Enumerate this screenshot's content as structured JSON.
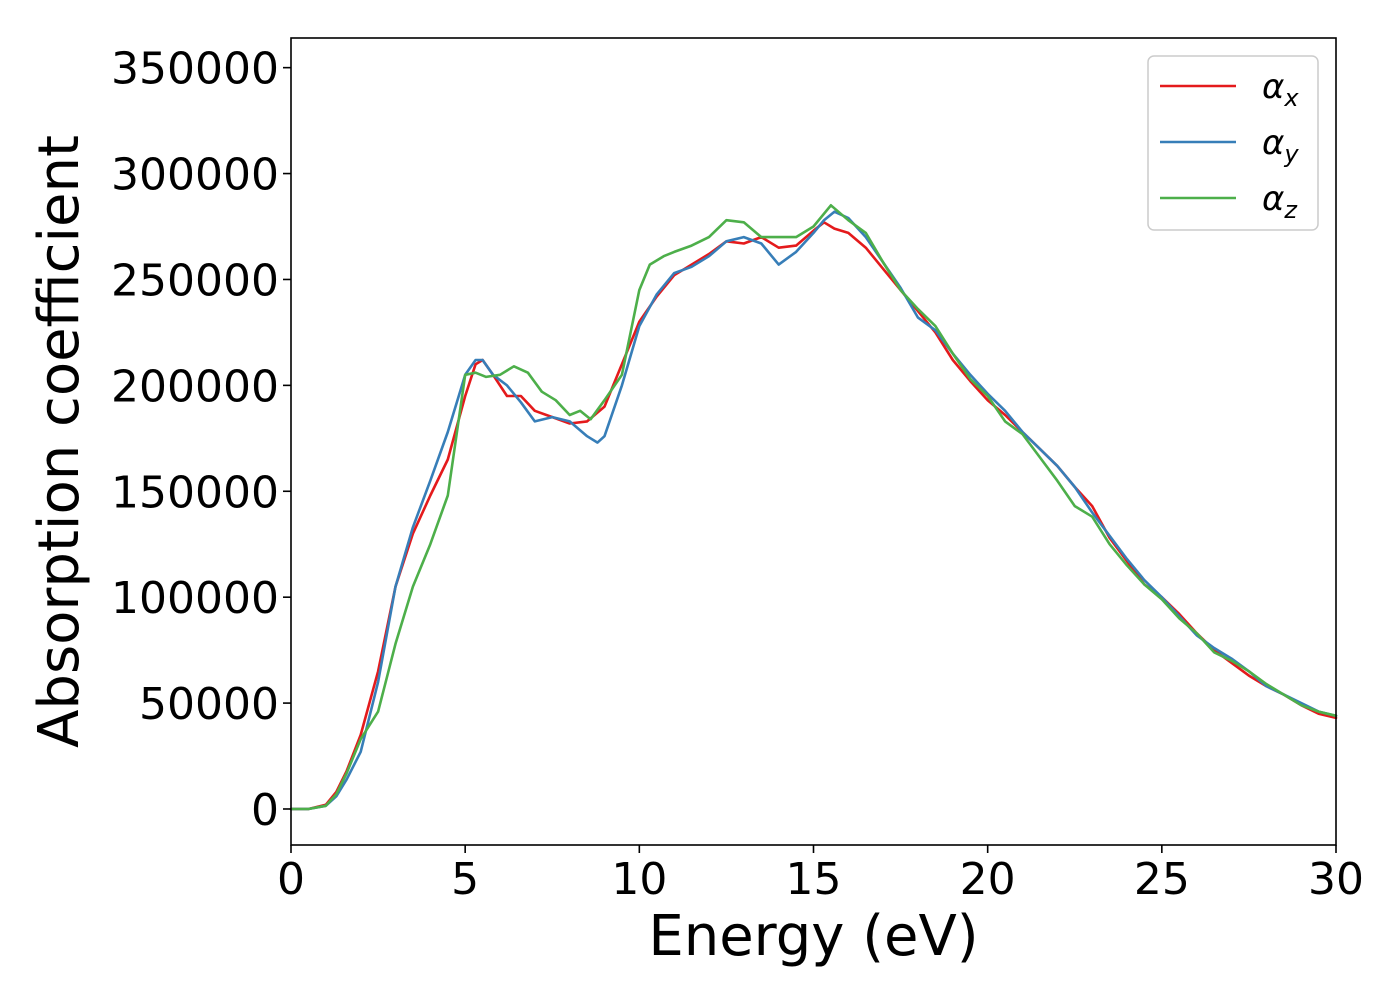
{
  "chart_data": {
    "type": "line",
    "title": "",
    "xlabel": "Energy (eV)",
    "ylabel": "Absorption coefficient",
    "xlim": [
      0,
      30
    ],
    "ylim": [
      -17000,
      364000
    ],
    "xticks": [
      0,
      5,
      10,
      15,
      20,
      25,
      30
    ],
    "xtick_labels": [
      "0",
      "5",
      "10",
      "15",
      "20",
      "25",
      "30"
    ],
    "yticks": [
      0,
      50000,
      100000,
      150000,
      200000,
      250000,
      300000,
      350000
    ],
    "ytick_labels": [
      "0",
      "50000",
      "100000",
      "150000",
      "200000",
      "250000",
      "300000",
      "350000"
    ],
    "grid": false,
    "legend_position": "top-right",
    "series": [
      {
        "name": "αx",
        "legend_symbol": "α",
        "legend_subscript": "x",
        "color": "#e41a1c",
        "points": [
          [
            0,
            0
          ],
          [
            0.5,
            0
          ],
          [
            1,
            2000
          ],
          [
            1.3,
            8000
          ],
          [
            1.6,
            18000
          ],
          [
            2,
            35000
          ],
          [
            2.5,
            65000
          ],
          [
            3,
            105000
          ],
          [
            3.5,
            130000
          ],
          [
            4,
            148000
          ],
          [
            4.5,
            165000
          ],
          [
            5,
            195000
          ],
          [
            5.3,
            210000
          ],
          [
            5.5,
            212000
          ],
          [
            5.8,
            205000
          ],
          [
            6.2,
            195000
          ],
          [
            6.6,
            195000
          ],
          [
            7,
            188000
          ],
          [
            7.5,
            185000
          ],
          [
            8,
            182000
          ],
          [
            8.5,
            183000
          ],
          [
            9,
            190000
          ],
          [
            9.5,
            210000
          ],
          [
            10,
            230000
          ],
          [
            10.5,
            242000
          ],
          [
            11,
            252000
          ],
          [
            11.5,
            257000
          ],
          [
            12,
            262000
          ],
          [
            12.5,
            268000
          ],
          [
            13,
            267000
          ],
          [
            13.5,
            270000
          ],
          [
            14,
            265000
          ],
          [
            14.5,
            266000
          ],
          [
            15,
            273000
          ],
          [
            15.3,
            277000
          ],
          [
            15.6,
            274000
          ],
          [
            16,
            272000
          ],
          [
            16.5,
            265000
          ],
          [
            17,
            255000
          ],
          [
            17.5,
            245000
          ],
          [
            18,
            235000
          ],
          [
            18.5,
            225000
          ],
          [
            19,
            212000
          ],
          [
            19.5,
            202000
          ],
          [
            20,
            193000
          ],
          [
            20.5,
            186000
          ],
          [
            21,
            178000
          ],
          [
            21.5,
            170000
          ],
          [
            22,
            162000
          ],
          [
            22.5,
            152000
          ],
          [
            23,
            143000
          ],
          [
            23.5,
            128000
          ],
          [
            24,
            117000
          ],
          [
            24.5,
            106000
          ],
          [
            25,
            100000
          ],
          [
            25.5,
            92000
          ],
          [
            26,
            83000
          ],
          [
            26.5,
            75000
          ],
          [
            27,
            69000
          ],
          [
            27.5,
            63000
          ],
          [
            28,
            58000
          ],
          [
            28.5,
            54000
          ],
          [
            29,
            49000
          ],
          [
            29.5,
            45000
          ],
          [
            30,
            43000
          ]
        ]
      },
      {
        "name": "αy",
        "legend_symbol": "α",
        "legend_subscript": "y",
        "color": "#377eb8",
        "points": [
          [
            0,
            0
          ],
          [
            0.5,
            0
          ],
          [
            1,
            1500
          ],
          [
            1.3,
            6000
          ],
          [
            1.6,
            14000
          ],
          [
            2,
            27000
          ],
          [
            2.5,
            60000
          ],
          [
            3,
            105000
          ],
          [
            3.5,
            133000
          ],
          [
            4,
            155000
          ],
          [
            4.5,
            178000
          ],
          [
            5,
            205000
          ],
          [
            5.3,
            212000
          ],
          [
            5.5,
            212000
          ],
          [
            5.8,
            205000
          ],
          [
            6.2,
            200000
          ],
          [
            6.6,
            192000
          ],
          [
            7,
            183000
          ],
          [
            7.5,
            185000
          ],
          [
            8,
            183000
          ],
          [
            8.5,
            176000
          ],
          [
            8.8,
            173000
          ],
          [
            9,
            176000
          ],
          [
            9.5,
            200000
          ],
          [
            10,
            228000
          ],
          [
            10.5,
            243000
          ],
          [
            11,
            253000
          ],
          [
            11.5,
            256000
          ],
          [
            12,
            261000
          ],
          [
            12.5,
            268000
          ],
          [
            13,
            270000
          ],
          [
            13.5,
            267000
          ],
          [
            14,
            257000
          ],
          [
            14.5,
            263000
          ],
          [
            15,
            272000
          ],
          [
            15.3,
            278000
          ],
          [
            15.6,
            282000
          ],
          [
            16,
            279000
          ],
          [
            16.5,
            270000
          ],
          [
            17,
            258000
          ],
          [
            17.5,
            246000
          ],
          [
            18,
            232000
          ],
          [
            18.5,
            226000
          ],
          [
            19,
            215000
          ],
          [
            19.5,
            205000
          ],
          [
            20,
            196000
          ],
          [
            20.5,
            188000
          ],
          [
            21,
            178000
          ],
          [
            21.5,
            170000
          ],
          [
            22,
            162000
          ],
          [
            22.5,
            152000
          ],
          [
            23,
            140000
          ],
          [
            23.5,
            129000
          ],
          [
            24,
            118000
          ],
          [
            24.5,
            108000
          ],
          [
            25,
            100000
          ],
          [
            25.5,
            91000
          ],
          [
            26,
            82000
          ],
          [
            26.5,
            76000
          ],
          [
            27,
            71000
          ],
          [
            27.5,
            65000
          ],
          [
            28,
            58000
          ],
          [
            28.5,
            54000
          ],
          [
            29,
            50000
          ],
          [
            29.5,
            46000
          ],
          [
            30,
            44000
          ]
        ]
      },
      {
        "name": "αz",
        "legend_symbol": "α",
        "legend_subscript": "z",
        "color": "#4daf4a",
        "points": [
          [
            0,
            0
          ],
          [
            0.5,
            0
          ],
          [
            1,
            1500
          ],
          [
            1.3,
            7000
          ],
          [
            1.6,
            17000
          ],
          [
            2,
            33000
          ],
          [
            2.5,
            46000
          ],
          [
            3,
            78000
          ],
          [
            3.5,
            105000
          ],
          [
            4,
            125000
          ],
          [
            4.5,
            148000
          ],
          [
            5,
            205000
          ],
          [
            5.3,
            206000
          ],
          [
            5.6,
            204000
          ],
          [
            6,
            205000
          ],
          [
            6.4,
            209000
          ],
          [
            6.8,
            206000
          ],
          [
            7.2,
            197000
          ],
          [
            7.6,
            193000
          ],
          [
            8,
            186000
          ],
          [
            8.3,
            188000
          ],
          [
            8.6,
            184000
          ],
          [
            9,
            193000
          ],
          [
            9.5,
            205000
          ],
          [
            10,
            245000
          ],
          [
            10.3,
            257000
          ],
          [
            10.7,
            261000
          ],
          [
            11,
            263000
          ],
          [
            11.5,
            266000
          ],
          [
            12,
            270000
          ],
          [
            12.5,
            278000
          ],
          [
            13,
            277000
          ],
          [
            13.5,
            270000
          ],
          [
            14,
            270000
          ],
          [
            14.5,
            270000
          ],
          [
            15,
            275000
          ],
          [
            15.5,
            285000
          ],
          [
            16,
            278000
          ],
          [
            16.5,
            272000
          ],
          [
            17,
            258000
          ],
          [
            17.5,
            245000
          ],
          [
            18,
            236000
          ],
          [
            18.5,
            228000
          ],
          [
            19,
            215000
          ],
          [
            19.5,
            203000
          ],
          [
            20,
            195000
          ],
          [
            20.5,
            183000
          ],
          [
            21,
            177000
          ],
          [
            21.5,
            166000
          ],
          [
            22,
            155000
          ],
          [
            22.5,
            143000
          ],
          [
            23,
            138000
          ],
          [
            23.5,
            125000
          ],
          [
            24,
            115000
          ],
          [
            24.5,
            106000
          ],
          [
            25,
            99000
          ],
          [
            25.5,
            90000
          ],
          [
            26,
            83000
          ],
          [
            26.5,
            74000
          ],
          [
            27,
            70000
          ],
          [
            27.5,
            65000
          ],
          [
            28,
            59000
          ],
          [
            28.5,
            54000
          ],
          [
            29,
            49000
          ],
          [
            29.5,
            46000
          ],
          [
            30,
            44000
          ]
        ]
      }
    ]
  }
}
